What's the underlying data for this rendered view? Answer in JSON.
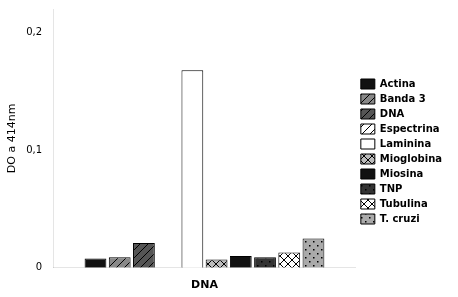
{
  "chart_data": {
    "type": "bar",
    "categories": [
      "DNA"
    ],
    "series": [
      {
        "name": "Actina",
        "color": "#111111",
        "values": [
          0.008
        ]
      },
      {
        "name": "Banda 3",
        "color": "#888888",
        "values": [
          0.009
        ]
      },
      {
        "name": "DNA",
        "color": "#555555",
        "values": [
          0.021
        ]
      },
      {
        "name": "Espectrina",
        "color": "#ffffff",
        "values": [
          0.0
        ]
      },
      {
        "name": "Laminina",
        "color": "#ffffff",
        "values": [
          0.168
        ]
      },
      {
        "name": "Mioglobina",
        "color": "#bbbbbb",
        "values": [
          0.007
        ]
      },
      {
        "name": "Miosina",
        "color": "#111111",
        "values": [
          0.01
        ]
      },
      {
        "name": "TNP",
        "color": "#333333",
        "values": [
          0.009
        ]
      },
      {
        "name": "Tubulina",
        "color": "#ffffff",
        "values": [
          0.013
        ]
      },
      {
        "name": "T. cruzi",
        "color": "#aaaaaa",
        "values": [
          0.025
        ]
      }
    ],
    "ylabel": "DO a 414nm",
    "ylim": [
      0,
      0.22
    ],
    "yticks": [
      0,
      {
        "value": 0.1,
        "label": "0,1"
      },
      {
        "value": 0.2,
        "label": "0,2"
      }
    ],
    "grid": false,
    "legend": "right"
  }
}
